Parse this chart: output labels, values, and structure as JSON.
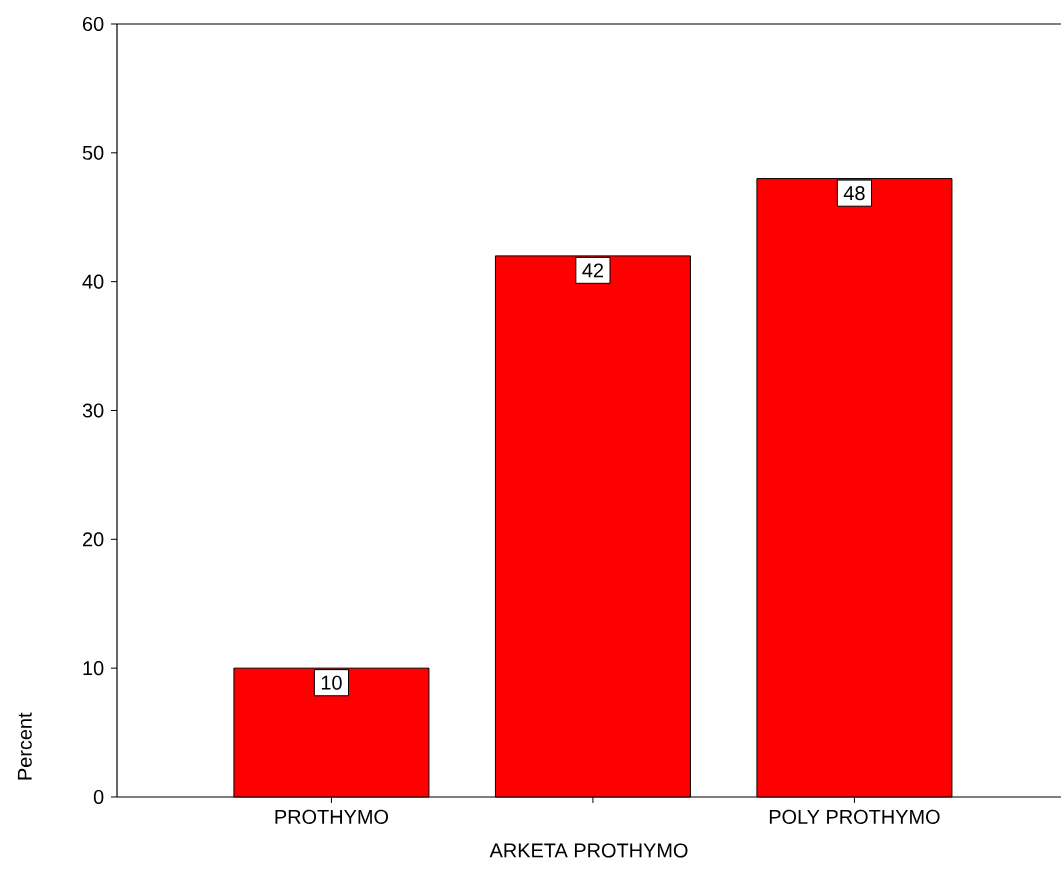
{
  "chart_data": {
    "type": "bar",
    "xlabel": "ARKETA PROTHYMO",
    "ylabel": "Percent",
    "categories": [
      "PROTHYMO",
      null,
      "POLY PROTHYMO"
    ],
    "values": [
      10,
      42,
      48
    ],
    "color": "#ff0000",
    "ylim": [
      0,
      60
    ],
    "yticks": [
      0,
      10,
      20,
      30,
      40,
      50,
      60
    ],
    "data_labels": true
  }
}
